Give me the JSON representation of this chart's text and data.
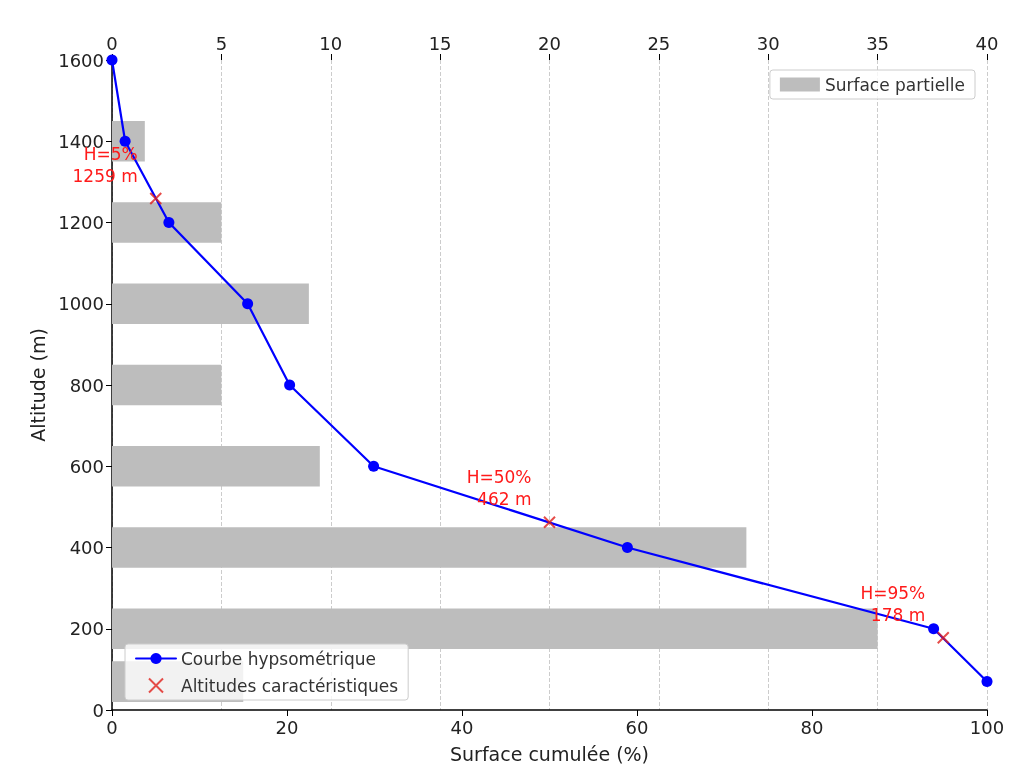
{
  "chart_data": {
    "type": "line",
    "xlabel": "Surface cumulée (%)",
    "ylabel": "Altitude (m)",
    "xlim": [
      0,
      100
    ],
    "xticks": [
      0,
      20,
      40,
      60,
      80,
      100
    ],
    "ylim": [
      0,
      1600
    ],
    "yticks": [
      0,
      200,
      400,
      600,
      800,
      1000,
      1200,
      1400,
      1600
    ],
    "x2lim": [
      0,
      40
    ],
    "x2ticks": [
      0,
      5,
      10,
      15,
      20,
      25,
      30,
      35,
      40
    ],
    "series": [
      {
        "name": "Surface partielle",
        "type": "bar",
        "axis": "x2",
        "color": "#bdbdbd",
        "x": [
          1400,
          1200,
          1000,
          800,
          600,
          400,
          200,
          70
        ],
        "values": [
          1.5,
          5,
          9,
          5,
          9.5,
          29,
          35,
          6
        ]
      },
      {
        "name": "Courbe hypsométrique",
        "color": "#0000ff",
        "marker": "circle",
        "line_style": "solid",
        "x": [
          1600,
          1400,
          1200,
          1000,
          800,
          600,
          400,
          200,
          70
        ],
        "values": [
          0,
          1.5,
          6.5,
          15.5,
          20.3,
          29.9,
          58.9,
          93.9,
          100
        ]
      },
      {
        "name": "Altitudes caractéristiques",
        "type": "scatter",
        "color": "#e0201b",
        "marker": "cross",
        "x": [
          1259,
          462,
          178
        ],
        "values": [
          5,
          50,
          95
        ]
      }
    ],
    "orientation": "horizontal",
    "legend": "bottom left",
    "annotations": [
      {
        "text": "H=5%\n1259 m",
        "x": 5,
        "y": 1259
      },
      {
        "text": "H=50%\n462 m",
        "x": 50,
        "y": 462
      },
      {
        "text": "H=95%\n178 m",
        "x": 95,
        "y": 178
      }
    ],
    "grid": "x2"
  }
}
